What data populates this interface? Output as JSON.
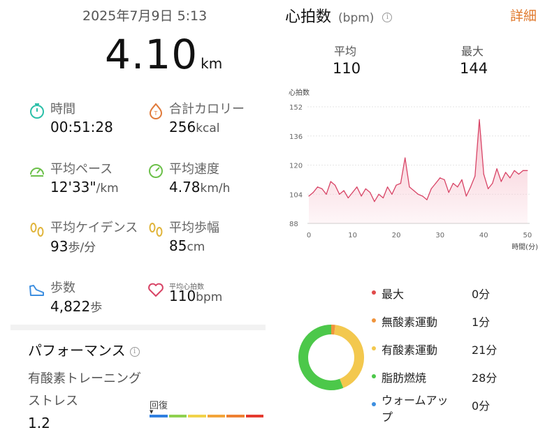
{
  "header": {
    "date": "2025年7月9日 5:13",
    "distance_value": "4.10",
    "distance_unit": "km"
  },
  "stats": {
    "time": {
      "label": "時間",
      "value": "00:51:28",
      "unit": ""
    },
    "calories": {
      "label": "合計カロリー",
      "value": "256",
      "unit": "kcal"
    },
    "pace": {
      "label": "平均ペース",
      "value": "12'33\"",
      "unit": "/km"
    },
    "speed": {
      "label": "平均速度",
      "value": "4.78",
      "unit": "km/h"
    },
    "cadence": {
      "label": "平均ケイデンス",
      "value": "93",
      "unit": "歩/分"
    },
    "stride": {
      "label": "平均歩幅",
      "value": "85",
      "unit": "cm"
    },
    "steps": {
      "label": "歩数",
      "value": "4,822",
      "unit": "歩"
    },
    "avg_hr": {
      "label": "平均心拍数",
      "value": "110",
      "unit": "bpm"
    }
  },
  "performance": {
    "title": "パフォーマンス",
    "aerobic_label": "有酸素トレーニングストレス",
    "aerobic_value": "1.2",
    "recovery_label": "回復",
    "scale_colors": [
      "#2f7fe0",
      "#8fd14f",
      "#f1d34a",
      "#f3a53a",
      "#ee8033",
      "#e53a2f"
    ]
  },
  "heart_rate": {
    "title": "心拍数",
    "unit_label": "(bpm)",
    "detail_link": "詳細",
    "avg_label": "平均",
    "avg_value": "110",
    "max_label": "最大",
    "max_value": "144"
  },
  "chart_data": {
    "type": "area",
    "ylabel": "心拍数",
    "xlabel": "時間(分)",
    "yticks": [
      88,
      104,
      120,
      136,
      152
    ],
    "xticks": [
      0,
      10,
      20,
      30,
      40,
      50
    ],
    "ylim": [
      88,
      152
    ],
    "xlim": [
      0,
      50.5
    ],
    "grid": true,
    "color": "#d84466",
    "fill_color": "#f7c5d0",
    "x": [
      0,
      1,
      2,
      3,
      4,
      5,
      6,
      7,
      8,
      9,
      10,
      11,
      12,
      13,
      14,
      15,
      16,
      17,
      18,
      19,
      20,
      21,
      22,
      23,
      24,
      25,
      26,
      27,
      28,
      29,
      30,
      31,
      32,
      33,
      34,
      35,
      36,
      37,
      38,
      39,
      40,
      41,
      42,
      43,
      44,
      45,
      46,
      47,
      48,
      49,
      50
    ],
    "values": [
      103,
      105,
      108,
      107,
      104,
      111,
      109,
      104,
      106,
      102,
      105,
      108,
      103,
      107,
      105,
      100,
      104,
      102,
      108,
      104,
      109,
      110,
      124,
      108,
      106,
      104,
      103,
      101,
      107,
      110,
      113,
      112,
      105,
      110,
      108,
      112,
      103,
      108,
      114,
      145,
      115,
      107,
      110,
      118,
      111,
      116,
      113,
      117,
      115,
      117,
      117
    ]
  },
  "zones": {
    "items": [
      {
        "name": "最大",
        "value": "0分",
        "color": "#e04a4a"
      },
      {
        "name": "無酸素運動",
        "value": "1分",
        "color": "#f0943c"
      },
      {
        "name": "有酸素運動",
        "value": "21分",
        "color": "#f3c84e"
      },
      {
        "name": "脂肪燃焼",
        "value": "28分",
        "color": "#4cc84a"
      },
      {
        "name": "ウォームアップ",
        "value": "0分",
        "color": "#3e8fe0"
      }
    ],
    "minutes": [
      0,
      1,
      21,
      28,
      0
    ]
  }
}
